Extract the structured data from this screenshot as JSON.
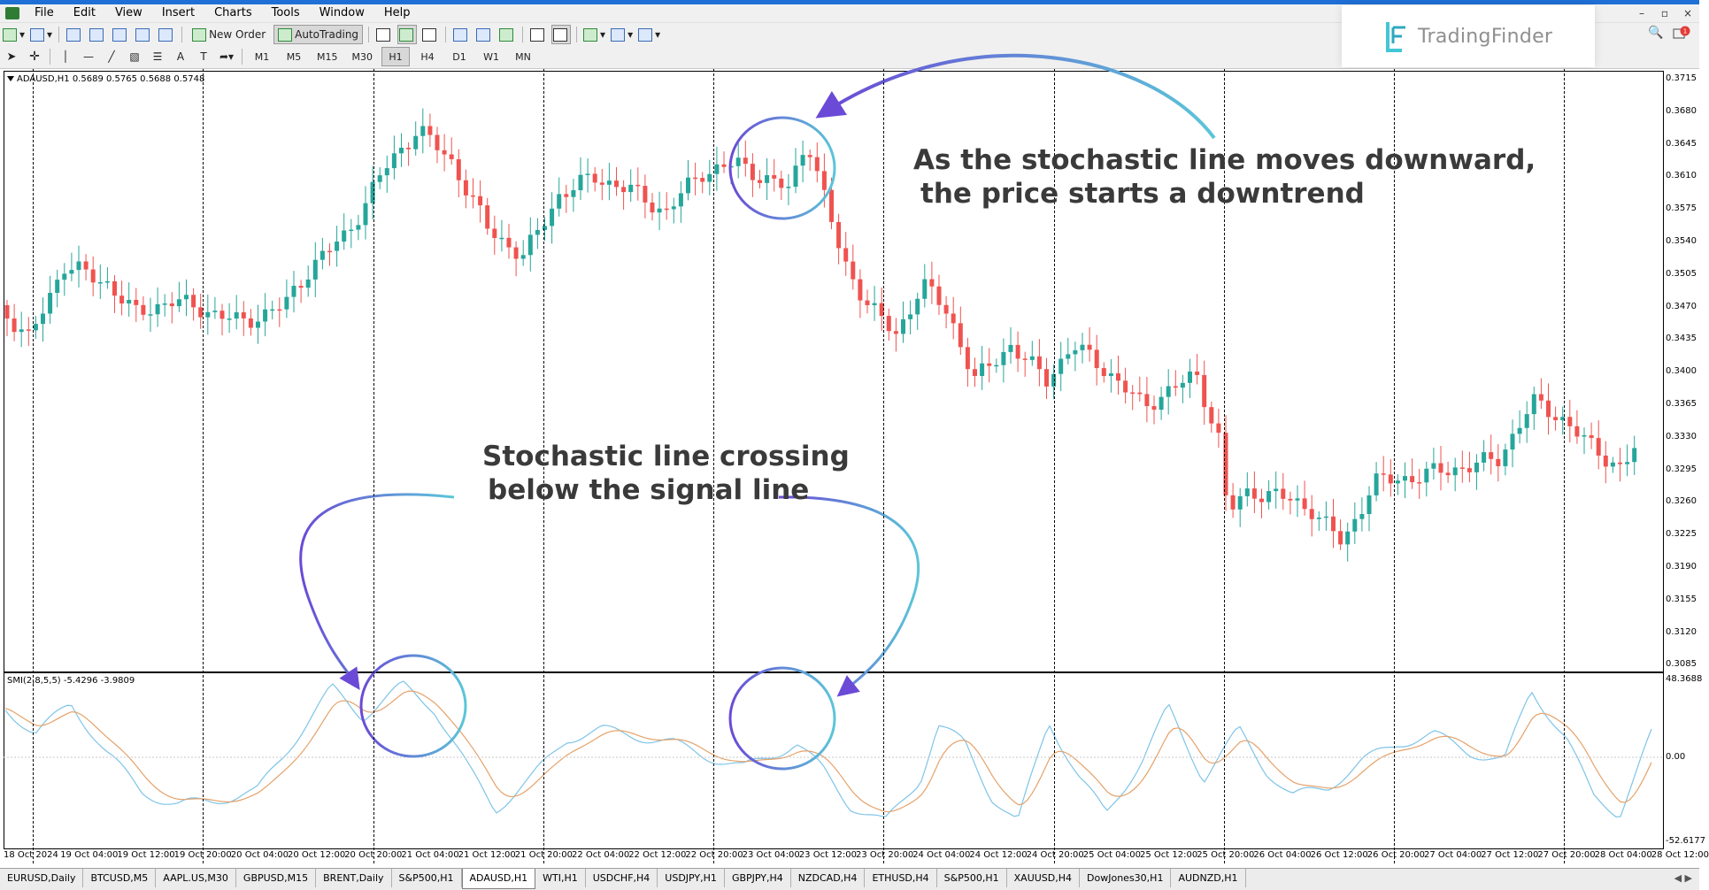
{
  "menu": {
    "items": [
      "File",
      "Edit",
      "View",
      "Insert",
      "Charts",
      "Tools",
      "Window",
      "Help"
    ],
    "window_controls": [
      "–",
      "▫",
      "×"
    ]
  },
  "toolbar": {
    "new_order_label": "New Order",
    "autotrading_label": "AutoTrading",
    "timeframes": [
      "M1",
      "M5",
      "M15",
      "M30",
      "H1",
      "H4",
      "D1",
      "W1",
      "MN"
    ],
    "active_timeframe": "H1"
  },
  "brand": {
    "name": "TradingFinder",
    "notification_count": "1"
  },
  "chart": {
    "ohlc_header": "ADAUSD,H1  0.5689 0.5765 0.5688 0.5748",
    "indicator_header": "SMI(2,8,5,5) -5.4296 -3.9809",
    "price_ticks": [
      "0.3715",
      "0.3680",
      "0.3645",
      "0.3610",
      "0.3575",
      "0.3540",
      "0.3505",
      "0.3470",
      "0.3435",
      "0.3400",
      "0.3365",
      "0.3330",
      "0.3295",
      "0.3260",
      "0.3225",
      "0.3190",
      "0.3155",
      "0.3120",
      "0.3085"
    ],
    "indicator_ticks": [
      "48.3688",
      "0.00",
      "-52.6177"
    ],
    "time_ticks": [
      "18 Oct 2024",
      "19 Oct 04:00",
      "19 Oct 12:00",
      "19 Oct 20:00",
      "20 Oct 04:00",
      "20 Oct 12:00",
      "20 Oct 20:00",
      "21 Oct 04:00",
      "21 Oct 12:00",
      "21 Oct 20:00",
      "22 Oct 04:00",
      "22 Oct 12:00",
      "22 Oct 20:00",
      "23 Oct 04:00",
      "23 Oct 12:00",
      "23 Oct 20:00",
      "24 Oct 04:00",
      "24 Oct 12:00",
      "24 Oct 20:00",
      "25 Oct 04:00",
      "25 Oct 12:00",
      "25 Oct 20:00",
      "26 Oct 04:00",
      "26 Oct 12:00",
      "26 Oct 20:00",
      "27 Oct 04:00",
      "27 Oct 12:00",
      "27 Oct 20:00",
      "28 Oct 04:00",
      "28 Oct 12:00"
    ],
    "colors": {
      "bull": "#26a69a",
      "bear": "#ef5350",
      "smi_line": "#7ec4e8",
      "signal_line": "#e5a26a",
      "annotation": "#5bc6d8",
      "annotation_purple": "#6a4ad6"
    },
    "annotations": {
      "top_line1": "As the stochastic line moves downward,",
      "top_line2": "the price starts a downtrend",
      "bottom_line1": "Stochastic line crossing",
      "bottom_line2": "below the signal line"
    }
  },
  "tabs": {
    "items": [
      "EURUSD,Daily",
      "BTCUSD,M5",
      "AAPL.US,M30",
      "GBPUSD,M15",
      "BRENT,Daily",
      "S&P500,H1",
      "ADAUSD,H1",
      "WTI,H1",
      "USDCHF,H4",
      "USDJPY,H1",
      "GBPJPY,H4",
      "NZDCAD,H4",
      "ETHUSD,H4",
      "S&P500,H1",
      "XAUUSD,H4",
      "DowJones30,H1",
      "AUDNZD,H1"
    ],
    "active": "ADAUSD,H1"
  }
}
